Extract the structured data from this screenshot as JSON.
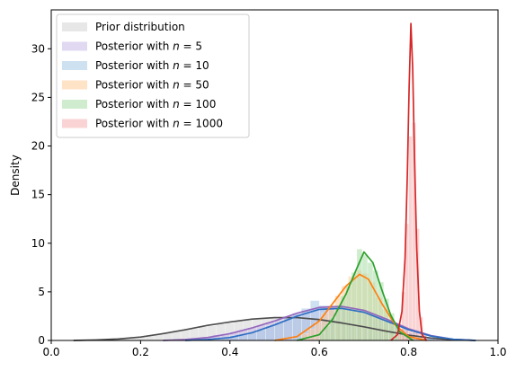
{
  "chart_data": {
    "type": "area",
    "title": "",
    "xlabel": "",
    "ylabel": "Density",
    "xlim": [
      0.0,
      1.0
    ],
    "ylim": [
      0,
      34
    ],
    "x_ticks": [
      0.0,
      0.2,
      0.4,
      0.6,
      0.8,
      1.0
    ],
    "x_tick_labels": [
      "0.0",
      "0.2",
      "0.4",
      "0.6",
      "0.8",
      "1.0"
    ],
    "y_ticks": [
      0,
      5,
      10,
      15,
      20,
      25,
      30
    ],
    "y_tick_labels": [
      "0",
      "5",
      "10",
      "15",
      "20",
      "25",
      "30"
    ],
    "grid": false,
    "legend_position": "top-left",
    "series": [
      {
        "name": "Prior distribution",
        "fill_color": "#d4d4d4",
        "line_color": "#4d4d4d",
        "kde": [
          [
            0.05,
            0.0
          ],
          [
            0.1,
            0.05
          ],
          [
            0.15,
            0.15
          ],
          [
            0.2,
            0.35
          ],
          [
            0.25,
            0.7
          ],
          [
            0.3,
            1.1
          ],
          [
            0.35,
            1.55
          ],
          [
            0.4,
            1.9
          ],
          [
            0.45,
            2.2
          ],
          [
            0.5,
            2.35
          ],
          [
            0.55,
            2.35
          ],
          [
            0.6,
            2.15
          ],
          [
            0.65,
            1.8
          ],
          [
            0.7,
            1.4
          ],
          [
            0.75,
            0.95
          ],
          [
            0.8,
            0.55
          ],
          [
            0.85,
            0.25
          ],
          [
            0.9,
            0.08
          ],
          [
            0.95,
            0.0
          ]
        ],
        "hist_bins": [
          [
            0.05,
            0.07,
            0.05
          ],
          [
            0.07,
            0.09,
            0.05
          ],
          [
            0.09,
            0.11,
            0.1
          ],
          [
            0.11,
            0.13,
            0.1
          ],
          [
            0.13,
            0.15,
            0.2
          ],
          [
            0.15,
            0.17,
            0.2
          ],
          [
            0.17,
            0.19,
            0.3
          ],
          [
            0.19,
            0.21,
            0.4
          ],
          [
            0.21,
            0.23,
            0.5
          ],
          [
            0.23,
            0.25,
            0.6
          ],
          [
            0.25,
            0.27,
            0.8
          ],
          [
            0.27,
            0.29,
            1.0
          ],
          [
            0.29,
            0.31,
            1.1
          ],
          [
            0.31,
            0.33,
            1.2
          ],
          [
            0.33,
            0.35,
            1.4
          ],
          [
            0.35,
            0.37,
            1.5
          ],
          [
            0.37,
            0.39,
            1.7
          ],
          [
            0.39,
            0.41,
            1.8
          ],
          [
            0.41,
            0.43,
            2.0
          ],
          [
            0.43,
            0.45,
            2.1
          ],
          [
            0.45,
            0.47,
            2.2
          ],
          [
            0.47,
            0.49,
            2.3
          ],
          [
            0.49,
            0.51,
            2.4
          ],
          [
            0.51,
            0.53,
            2.3
          ],
          [
            0.53,
            0.55,
            2.3
          ],
          [
            0.55,
            0.57,
            2.2
          ],
          [
            0.57,
            0.59,
            2.1
          ],
          [
            0.59,
            0.61,
            2.0
          ],
          [
            0.61,
            0.63,
            1.9
          ],
          [
            0.63,
            0.65,
            1.8
          ],
          [
            0.65,
            0.67,
            1.6
          ],
          [
            0.67,
            0.69,
            1.4
          ],
          [
            0.69,
            0.71,
            1.3
          ],
          [
            0.71,
            0.73,
            1.1
          ],
          [
            0.73,
            0.75,
            0.9
          ],
          [
            0.75,
            0.77,
            0.8
          ],
          [
            0.77,
            0.79,
            0.6
          ],
          [
            0.79,
            0.81,
            0.5
          ],
          [
            0.81,
            0.83,
            0.35
          ],
          [
            0.83,
            0.85,
            0.25
          ],
          [
            0.85,
            0.87,
            0.15
          ],
          [
            0.87,
            0.89,
            0.1
          ],
          [
            0.89,
            0.91,
            0.05
          ],
          [
            0.91,
            0.93,
            0.05
          ]
        ]
      },
      {
        "name": "Posterior with n = 5",
        "fill_color": "#c9b8e6",
        "line_color": "#9467bd",
        "kde": [
          [
            0.25,
            0.0
          ],
          [
            0.3,
            0.1
          ],
          [
            0.35,
            0.3
          ],
          [
            0.4,
            0.7
          ],
          [
            0.45,
            1.3
          ],
          [
            0.5,
            2.0
          ],
          [
            0.55,
            2.8
          ],
          [
            0.6,
            3.4
          ],
          [
            0.65,
            3.5
          ],
          [
            0.7,
            3.1
          ],
          [
            0.75,
            2.2
          ],
          [
            0.8,
            1.2
          ],
          [
            0.85,
            0.5
          ],
          [
            0.9,
            0.12
          ],
          [
            0.95,
            0.0
          ]
        ],
        "hist_bins": [
          [
            0.3,
            0.32,
            0.2
          ],
          [
            0.32,
            0.34,
            0.3
          ],
          [
            0.34,
            0.36,
            0.4
          ],
          [
            0.36,
            0.38,
            0.6
          ],
          [
            0.38,
            0.4,
            0.7
          ],
          [
            0.4,
            0.42,
            0.9
          ],
          [
            0.42,
            0.44,
            1.1
          ],
          [
            0.44,
            0.46,
            1.3
          ],
          [
            0.46,
            0.48,
            1.6
          ],
          [
            0.48,
            0.5,
            1.9
          ],
          [
            0.5,
            0.52,
            2.1
          ],
          [
            0.52,
            0.54,
            2.5
          ],
          [
            0.54,
            0.56,
            2.8
          ],
          [
            0.56,
            0.58,
            3.1
          ],
          [
            0.58,
            0.6,
            3.3
          ],
          [
            0.6,
            0.62,
            3.5
          ],
          [
            0.62,
            0.64,
            3.6
          ],
          [
            0.64,
            0.66,
            3.5
          ],
          [
            0.66,
            0.68,
            3.4
          ],
          [
            0.68,
            0.7,
            3.2
          ],
          [
            0.7,
            0.72,
            2.9
          ],
          [
            0.72,
            0.74,
            2.5
          ],
          [
            0.74,
            0.76,
            2.1
          ],
          [
            0.76,
            0.78,
            1.6
          ],
          [
            0.78,
            0.8,
            1.2
          ],
          [
            0.8,
            0.82,
            0.8
          ],
          [
            0.82,
            0.84,
            0.5
          ],
          [
            0.84,
            0.86,
            0.3
          ],
          [
            0.86,
            0.88,
            0.2
          ]
        ]
      },
      {
        "name": "Posterior with n = 10",
        "fill_color": "#a6c8e6",
        "line_color": "#2f6fc4",
        "kde": [
          [
            0.3,
            0.0
          ],
          [
            0.35,
            0.1
          ],
          [
            0.4,
            0.3
          ],
          [
            0.45,
            0.8
          ],
          [
            0.5,
            1.6
          ],
          [
            0.55,
            2.5
          ],
          [
            0.6,
            3.2
          ],
          [
            0.65,
            3.3
          ],
          [
            0.7,
            2.9
          ],
          [
            0.75,
            2.0
          ],
          [
            0.8,
            1.1
          ],
          [
            0.85,
            0.45
          ],
          [
            0.9,
            0.12
          ],
          [
            0.95,
            0.0
          ]
        ],
        "hist_bins": [
          [
            0.36,
            0.38,
            0.2
          ],
          [
            0.38,
            0.4,
            0.3
          ],
          [
            0.4,
            0.42,
            0.5
          ],
          [
            0.42,
            0.44,
            0.6
          ],
          [
            0.44,
            0.46,
            0.8
          ],
          [
            0.46,
            0.48,
            1.1
          ],
          [
            0.48,
            0.5,
            1.5
          ],
          [
            0.5,
            0.52,
            1.9
          ],
          [
            0.52,
            0.54,
            2.3
          ],
          [
            0.54,
            0.56,
            2.7
          ],
          [
            0.56,
            0.58,
            3.3
          ],
          [
            0.58,
            0.6,
            4.1
          ],
          [
            0.6,
            0.62,
            3.6
          ],
          [
            0.62,
            0.64,
            3.3
          ],
          [
            0.64,
            0.66,
            3.4
          ],
          [
            0.66,
            0.68,
            3.0
          ],
          [
            0.68,
            0.7,
            2.8
          ],
          [
            0.7,
            0.72,
            2.6
          ],
          [
            0.72,
            0.74,
            2.3
          ],
          [
            0.74,
            0.76,
            1.9
          ],
          [
            0.76,
            0.78,
            1.5
          ],
          [
            0.78,
            0.8,
            1.2
          ],
          [
            0.8,
            0.82,
            0.8
          ],
          [
            0.82,
            0.84,
            0.5
          ],
          [
            0.84,
            0.86,
            0.3
          ]
        ]
      },
      {
        "name": "Posterior with n = 50",
        "fill_color": "#ffcc99",
        "line_color": "#ff7f0e",
        "kde": [
          [
            0.5,
            0.0
          ],
          [
            0.55,
            0.4
          ],
          [
            0.6,
            2.0
          ],
          [
            0.63,
            3.8
          ],
          [
            0.66,
            5.6
          ],
          [
            0.69,
            6.8
          ],
          [
            0.71,
            6.3
          ],
          [
            0.74,
            3.8
          ],
          [
            0.77,
            1.6
          ],
          [
            0.8,
            0.4
          ],
          [
            0.84,
            0.0
          ]
        ],
        "hist_bins": [
          [
            0.56,
            0.575,
            0.7
          ],
          [
            0.575,
            0.59,
            1.2
          ],
          [
            0.59,
            0.605,
            1.9
          ],
          [
            0.605,
            0.62,
            2.8
          ],
          [
            0.62,
            0.635,
            3.6
          ],
          [
            0.635,
            0.65,
            4.6
          ],
          [
            0.65,
            0.665,
            5.6
          ],
          [
            0.665,
            0.68,
            6.6
          ],
          [
            0.68,
            0.695,
            7.2
          ],
          [
            0.695,
            0.71,
            6.9
          ],
          [
            0.71,
            0.725,
            6.0
          ],
          [
            0.725,
            0.74,
            4.4
          ],
          [
            0.74,
            0.755,
            3.2
          ],
          [
            0.755,
            0.77,
            2.0
          ],
          [
            0.77,
            0.785,
            1.1
          ],
          [
            0.785,
            0.8,
            0.5
          ]
        ]
      },
      {
        "name": "Posterior with n = 100",
        "fill_color": "#a8dca8",
        "line_color": "#2ca02c",
        "kde": [
          [
            0.55,
            0.0
          ],
          [
            0.6,
            0.6
          ],
          [
            0.63,
            2.2
          ],
          [
            0.66,
            4.8
          ],
          [
            0.68,
            7.0
          ],
          [
            0.7,
            9.1
          ],
          [
            0.72,
            8.0
          ],
          [
            0.74,
            5.2
          ],
          [
            0.76,
            2.6
          ],
          [
            0.78,
            0.9
          ],
          [
            0.81,
            0.0
          ]
        ],
        "hist_bins": [
          [
            0.6,
            0.612,
            0.8
          ],
          [
            0.612,
            0.624,
            1.5
          ],
          [
            0.624,
            0.636,
            2.4
          ],
          [
            0.636,
            0.648,
            3.4
          ],
          [
            0.648,
            0.66,
            4.6
          ],
          [
            0.66,
            0.672,
            5.6
          ],
          [
            0.672,
            0.684,
            7.0
          ],
          [
            0.684,
            0.696,
            9.4
          ],
          [
            0.696,
            0.708,
            8.8
          ],
          [
            0.708,
            0.72,
            8.0
          ],
          [
            0.72,
            0.732,
            7.2
          ],
          [
            0.732,
            0.744,
            6.0
          ],
          [
            0.744,
            0.756,
            4.3
          ],
          [
            0.756,
            0.768,
            2.8
          ],
          [
            0.768,
            0.78,
            1.5
          ],
          [
            0.78,
            0.792,
            0.6
          ]
        ]
      },
      {
        "name": "Posterior with n = 1000",
        "fill_color": "#f5b0b0",
        "line_color": "#d62728",
        "kde": [
          [
            0.76,
            0.0
          ],
          [
            0.775,
            0.6
          ],
          [
            0.785,
            3.0
          ],
          [
            0.792,
            8.5
          ],
          [
            0.797,
            17.0
          ],
          [
            0.801,
            26.0
          ],
          [
            0.805,
            32.6
          ],
          [
            0.809,
            28.0
          ],
          [
            0.813,
            19.0
          ],
          [
            0.818,
            9.5
          ],
          [
            0.824,
            3.0
          ],
          [
            0.83,
            0.6
          ],
          [
            0.84,
            0.0
          ]
        ],
        "hist_bins": [
          [
            0.776,
            0.784,
            1.2
          ],
          [
            0.784,
            0.792,
            5.0
          ],
          [
            0.792,
            0.8,
            12.0
          ],
          [
            0.8,
            0.808,
            21.0
          ],
          [
            0.808,
            0.816,
            22.4
          ],
          [
            0.816,
            0.824,
            11.5
          ],
          [
            0.824,
            0.832,
            2.4
          ],
          [
            0.832,
            0.84,
            0.6
          ]
        ]
      }
    ]
  }
}
